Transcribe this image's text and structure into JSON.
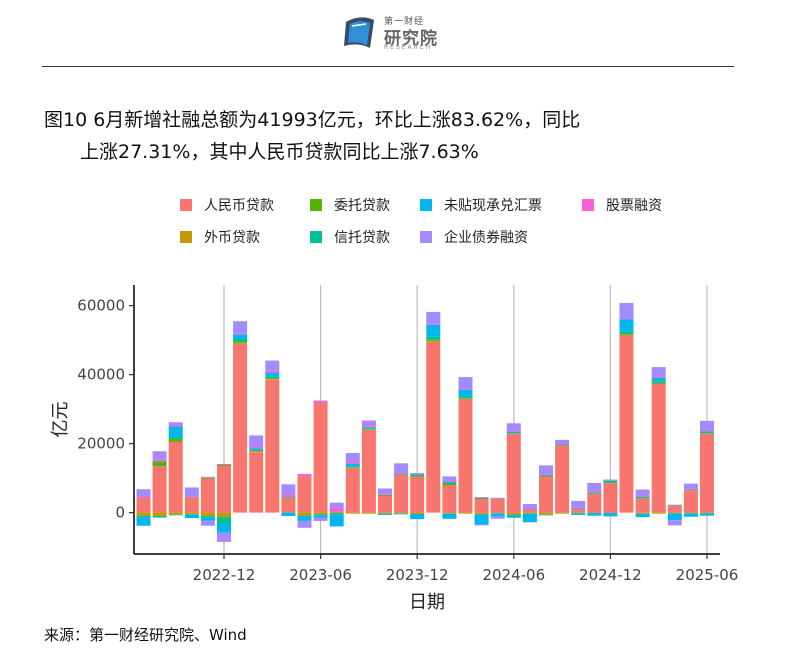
{
  "header": {
    "logo_top": "第一财经",
    "logo_main": "研究院",
    "logo_sub": "RESEARCH"
  },
  "title_line1": "图10 6月新增社融总额为41993亿元，环比上涨83.62%，同比",
  "title_line2": "上涨27.31%，其中人民币贷款同比上涨7.63%",
  "source": "来源：第一财经研究院、Wind",
  "chart_data": {
    "type": "bar",
    "stacked": true,
    "title": "",
    "xlabel": "日期",
    "ylabel": "亿元",
    "ylim": [
      -12000,
      66000
    ],
    "yticks": [
      0,
      20000,
      40000,
      60000
    ],
    "yticklabels": [
      "0",
      "20000",
      "40000",
      "60000"
    ],
    "xticks": [
      "2022-12",
      "2023-06",
      "2023-12",
      "2024-06",
      "2024-12",
      "2025-06"
    ],
    "xtick_index": [
      5,
      11,
      17,
      23,
      29,
      35
    ],
    "grid": "vertical",
    "legend_position": "top",
    "categories": [
      "2022-07",
      "2022-08",
      "2022-09",
      "2022-10",
      "2022-11",
      "2022-12",
      "2023-01",
      "2023-02",
      "2023-03",
      "2023-04",
      "2023-05",
      "2023-06",
      "2023-07",
      "2023-08",
      "2023-09",
      "2023-10",
      "2023-11",
      "2023-12",
      "2024-01",
      "2024-02",
      "2024-03",
      "2024-04",
      "2024-05",
      "2024-06",
      "2024-07",
      "2024-08",
      "2024-09",
      "2024-10",
      "2024-11",
      "2024-12",
      "2025-01",
      "2025-02",
      "2025-03",
      "2025-04",
      "2025-05",
      "2025-06"
    ],
    "series": [
      {
        "name": "人民币贷款",
        "color": "#F8766D",
        "values": [
          4000,
          13500,
          20500,
          4000,
          9800,
          13500,
          49000,
          17500,
          38500,
          4000,
          10500,
          31500,
          300,
          13000,
          24000,
          5000,
          11000,
          10500,
          49500,
          8000,
          33000,
          4000,
          4000,
          23000,
          1000,
          10500,
          19500,
          1000,
          5500,
          8500,
          51500,
          4000,
          37500,
          2000,
          6500,
          23000
        ]
      },
      {
        "name": "外币贷款",
        "color": "#C49A00",
        "values": [
          -900,
          -1000,
          -600,
          -500,
          -1000,
          -1300,
          300,
          300,
          200,
          200,
          -800,
          -500,
          -100,
          -300,
          -300,
          -300,
          -200,
          -400,
          300,
          -300,
          -300,
          -500,
          -200,
          -700,
          -200,
          -600,
          -300,
          -200,
          -100,
          -100,
          100,
          -300,
          -300,
          -200,
          -200,
          -200
        ]
      },
      {
        "name": "委托贷款",
        "color": "#53B400",
        "values": [
          200,
          1300,
          1000,
          300,
          300,
          300,
          300,
          200,
          300,
          100,
          -100,
          200,
          -100,
          200,
          200,
          100,
          -100,
          100,
          300,
          300,
          200,
          100,
          0,
          0,
          -100,
          100,
          0,
          0,
          0,
          200,
          200,
          200,
          100,
          0,
          0,
          0
        ]
      },
      {
        "name": "信托贷款",
        "color": "#00C094",
        "values": [
          -400,
          -300,
          -100,
          -100,
          -300,
          -2000,
          600,
          200,
          400,
          100,
          0,
          -300,
          -300,
          200,
          300,
          100,
          300,
          500,
          900,
          600,
          500,
          200,
          200,
          500,
          100,
          300,
          300,
          200,
          400,
          600,
          800,
          400,
          500,
          200,
          200,
          600
        ]
      },
      {
        "name": "未贴现承兑汇票",
        "color": "#00B6EB",
        "values": [
          -2500,
          -100,
          3500,
          -1000,
          -1000,
          -2500,
          1500,
          400,
          1200,
          -1000,
          -1500,
          -600,
          -3500,
          800,
          200,
          -400,
          -200,
          -1500,
          3500,
          -1500,
          2000,
          -3000,
          -1000,
          -800,
          -2500,
          -200,
          0,
          -500,
          -800,
          -1000,
          3500,
          -1000,
          1000,
          -2000,
          -1000,
          -700
        ]
      },
      {
        "name": "股票融资",
        "color": "#FB61D7",
        "values": [
          600,
          500,
          400,
          500,
          300,
          300,
          300,
          300,
          500,
          800,
          700,
          800,
          1100,
          600,
          300,
          300,
          200,
          200,
          200,
          100,
          100,
          200,
          100,
          100,
          100,
          100,
          100,
          200,
          200,
          100,
          200,
          100,
          100,
          100,
          200,
          200
        ]
      },
      {
        "name": "企业债券融资",
        "color": "#A58AFF",
        "values": [
          2000,
          2500,
          800,
          2500,
          -1500,
          -2700,
          3500,
          3500,
          3000,
          3000,
          -2000,
          -1000,
          1500,
          2500,
          1700,
          1500,
          2800,
          200,
          3500,
          1500,
          3500,
          -200,
          -600,
          2300,
          1300,
          2700,
          1200,
          2000,
          2500,
          200,
          4500,
          2000,
          3000,
          -1500,
          1500,
          2800
        ]
      }
    ]
  }
}
